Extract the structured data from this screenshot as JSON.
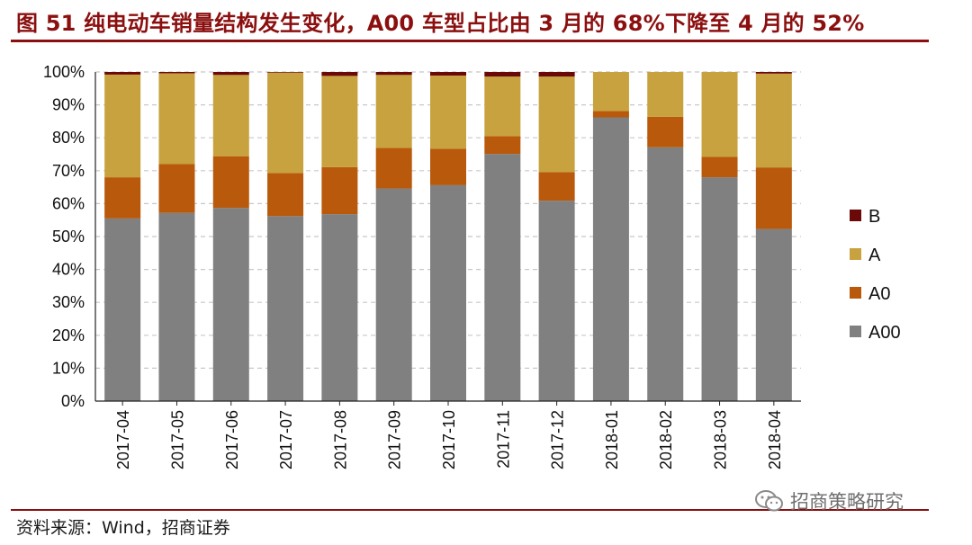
{
  "title": "图 51 纯电动车销量结构发生变化，A00 车型占比由 3 月的 68%下降至 4 月的 52%",
  "source": "资料来源：Wind，招商证券",
  "watermark": "招商策略研究",
  "colors": {
    "A00": "#808080",
    "A0": "#b8590b",
    "A": "#c7a23e",
    "B": "#6b0808",
    "title": "#8b0f0f",
    "grid": "#c8c8c8"
  },
  "chart_data": {
    "type": "bar",
    "stacked": true,
    "title": "纯电动车销量结构发生变化，A00 车型占比由 3 月的 68%下降至 4 月的 52%",
    "ylabel": "",
    "xlabel": "",
    "ylim": [
      0,
      100
    ],
    "yticks": [
      "0%",
      "10%",
      "20%",
      "30%",
      "40%",
      "50%",
      "60%",
      "70%",
      "80%",
      "90%",
      "100%"
    ],
    "grid": true,
    "legend_position": "right",
    "categories": [
      "2017-04",
      "2017-05",
      "2017-06",
      "2017-07",
      "2017-08",
      "2017-09",
      "2017-10",
      "2017-11",
      "2017-12",
      "2018-01",
      "2018-02",
      "2018-03",
      "2018-04"
    ],
    "series": [
      {
        "name": "A00",
        "values": [
          55.5,
          57.2,
          58.7,
          56.2,
          56.8,
          64.6,
          65.6,
          75.1,
          60.9,
          86.2,
          77.1,
          68.0,
          52.3
        ]
      },
      {
        "name": "A0",
        "values": [
          12.5,
          14.8,
          15.7,
          13.1,
          14.3,
          12.3,
          11.1,
          5.4,
          8.7,
          1.9,
          9.3,
          6.2,
          18.7
        ]
      },
      {
        "name": "A",
        "values": [
          31.2,
          27.6,
          24.7,
          30.5,
          27.7,
          22.2,
          22.2,
          18.1,
          29.0,
          11.9,
          13.6,
          25.8,
          28.5
        ]
      },
      {
        "name": "B",
        "values": [
          0.8,
          0.4,
          0.9,
          0.2,
          1.2,
          0.9,
          1.1,
          1.4,
          1.4,
          0.0,
          0.0,
          0.0,
          0.5
        ]
      }
    ],
    "legend": [
      "B",
      "A",
      "A0",
      "A00"
    ]
  }
}
